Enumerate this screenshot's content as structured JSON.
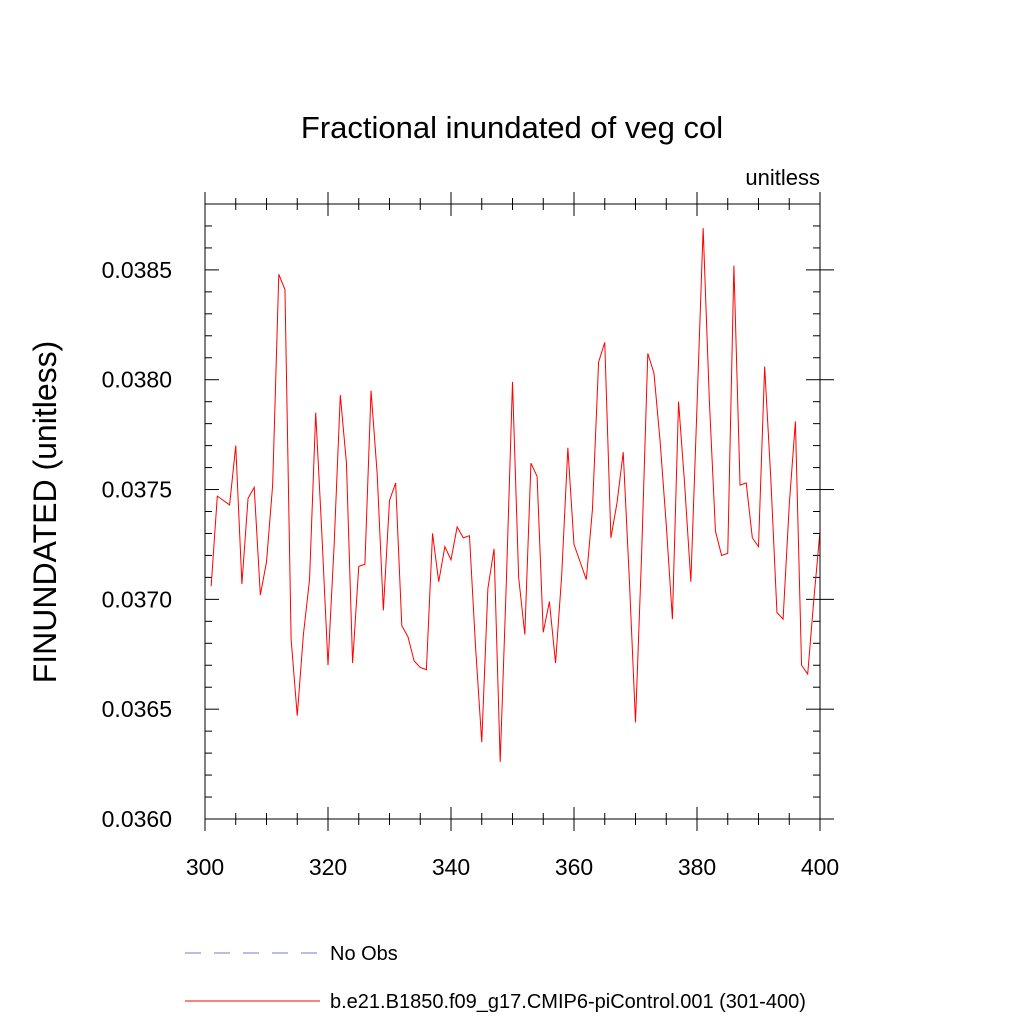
{
  "chart_data": {
    "type": "line",
    "title": "Fractional inundated of veg col",
    "units_label": "unitless",
    "xlabel": "",
    "ylabel": "FINUNDATED  (unitless)",
    "xlim": [
      300,
      400
    ],
    "ylim": [
      0.036,
      0.0388
    ],
    "x_ticks": [
      "300",
      "320",
      "340",
      "360",
      "380",
      "400"
    ],
    "y_ticks": [
      "0.0360",
      "0.0365",
      "0.0370",
      "0.0375",
      "0.0380",
      "0.0385"
    ],
    "grid": false,
    "legend_position": "bottom",
    "colors": {
      "model": "#ff0000",
      "obs": "#7777cc"
    },
    "series": [
      {
        "name": "No Obs",
        "style": "dashed",
        "x": [],
        "values": []
      },
      {
        "name": "b.e21.B1850.f09_g17.CMIP6-piControl.001 (301-400)",
        "style": "solid",
        "x": [
          301,
          302,
          303,
          304,
          305,
          306,
          307,
          308,
          309,
          310,
          311,
          312,
          313,
          314,
          315,
          316,
          317,
          318,
          319,
          320,
          321,
          322,
          323,
          324,
          325,
          326,
          327,
          328,
          329,
          330,
          331,
          332,
          333,
          334,
          335,
          336,
          337,
          338,
          339,
          340,
          341,
          342,
          343,
          344,
          345,
          346,
          347,
          348,
          349,
          350,
          351,
          352,
          353,
          354,
          355,
          356,
          357,
          358,
          359,
          360,
          361,
          362,
          363,
          364,
          365,
          366,
          367,
          368,
          369,
          370,
          371,
          372,
          373,
          374,
          375,
          376,
          377,
          378,
          379,
          380,
          381,
          382,
          383,
          384,
          385,
          386,
          387,
          388,
          389,
          390,
          391,
          392,
          393,
          394,
          395,
          396,
          397,
          398,
          399,
          400
        ],
        "values": [
          0.03706,
          0.03747,
          0.03745,
          0.03743,
          0.0377,
          0.03707,
          0.03746,
          0.03751,
          0.03702,
          0.03717,
          0.03752,
          0.03848,
          0.03841,
          0.03682,
          0.03647,
          0.03684,
          0.03709,
          0.03785,
          0.0373,
          0.0367,
          0.03725,
          0.03793,
          0.03762,
          0.03671,
          0.03715,
          0.03716,
          0.03795,
          0.03757,
          0.03695,
          0.03745,
          0.03753,
          0.03688,
          0.03683,
          0.03672,
          0.03669,
          0.03668,
          0.0373,
          0.03708,
          0.03724,
          0.03718,
          0.03733,
          0.03728,
          0.03729,
          0.03678,
          0.03635,
          0.03705,
          0.03723,
          0.03626,
          0.03708,
          0.03799,
          0.0371,
          0.03684,
          0.03762,
          0.03756,
          0.03685,
          0.03699,
          0.03671,
          0.03711,
          0.03769,
          0.03725,
          0.03717,
          0.03709,
          0.03741,
          0.03808,
          0.03817,
          0.03728,
          0.03744,
          0.03767,
          0.03709,
          0.03644,
          0.03721,
          0.03812,
          0.03803,
          0.03772,
          0.03734,
          0.03691,
          0.0379,
          0.03752,
          0.03708,
          0.03788,
          0.03869,
          0.03791,
          0.03731,
          0.0372,
          0.03721,
          0.03852,
          0.03752,
          0.03753,
          0.03728,
          0.03724,
          0.03806,
          0.03755,
          0.03694,
          0.03691,
          0.03743,
          0.03781,
          0.0367,
          0.03666,
          0.037,
          0.03731
        ]
      }
    ]
  }
}
